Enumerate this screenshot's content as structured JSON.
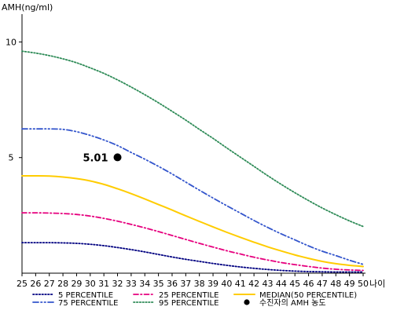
{
  "chart_data": {
    "type": "line",
    "ylabel": "AMH(ng/ml)",
    "xlabel": "나이",
    "x": [
      25,
      26,
      27,
      28,
      29,
      30,
      31,
      32,
      33,
      34,
      35,
      36,
      37,
      38,
      39,
      40,
      41,
      42,
      43,
      44,
      45,
      46,
      47,
      48,
      49,
      50
    ],
    "xlim": [
      25,
      50
    ],
    "ylim": [
      0,
      11
    ],
    "yticks": [
      5,
      10
    ],
    "grid": false,
    "legend_position": "bottom",
    "series": [
      {
        "name": "5 PERCENTILE",
        "color": "#000080",
        "dash": "dotted",
        "values": [
          1.32,
          1.32,
          1.32,
          1.31,
          1.29,
          1.25,
          1.19,
          1.11,
          1.02,
          0.92,
          0.81,
          0.7,
          0.6,
          0.51,
          0.42,
          0.34,
          0.27,
          0.21,
          0.16,
          0.12,
          0.09,
          0.07,
          0.06,
          0.05,
          0.05,
          0.05
        ]
      },
      {
        "name": "25 PERCENTILE",
        "color": "#e6007e",
        "dash": "dash-dot",
        "values": [
          2.61,
          2.61,
          2.6,
          2.58,
          2.54,
          2.47,
          2.37,
          2.25,
          2.11,
          1.96,
          1.8,
          1.63,
          1.46,
          1.29,
          1.13,
          0.97,
          0.83,
          0.69,
          0.57,
          0.46,
          0.37,
          0.29,
          0.22,
          0.17,
          0.14,
          0.12
        ]
      },
      {
        "name": "MEDIAN(50 PERCENTILE)",
        "color": "#ffcc00",
        "dash": "solid",
        "values": [
          4.21,
          4.21,
          4.2,
          4.16,
          4.09,
          3.99,
          3.84,
          3.65,
          3.44,
          3.21,
          2.97,
          2.73,
          2.48,
          2.24,
          2.0,
          1.77,
          1.55,
          1.34,
          1.14,
          0.96,
          0.79,
          0.64,
          0.51,
          0.41,
          0.34,
          0.29
        ]
      },
      {
        "name": "75 PERCENTILE",
        "color": "#3355cc",
        "dash": "dash-dot-dot",
        "values": [
          6.24,
          6.24,
          6.24,
          6.22,
          6.12,
          5.96,
          5.76,
          5.52,
          5.22,
          4.93,
          4.62,
          4.29,
          3.94,
          3.59,
          3.25,
          2.92,
          2.6,
          2.28,
          1.98,
          1.7,
          1.44,
          1.18,
          0.95,
          0.76,
          0.56,
          0.38
        ]
      },
      {
        "name": "95 PERCENTILE",
        "color": "#2e8b57",
        "dash": "dotted",
        "values": [
          9.6,
          9.52,
          9.41,
          9.27,
          9.1,
          8.88,
          8.64,
          8.36,
          8.05,
          7.72,
          7.37,
          7.0,
          6.62,
          6.22,
          5.83,
          5.42,
          5.02,
          4.62,
          4.22,
          3.84,
          3.48,
          3.14,
          2.82,
          2.53,
          2.26,
          2.02
        ]
      }
    ],
    "marker": {
      "name": "수진자의 AMH 농도",
      "x": 32,
      "y": 5.01,
      "label": "5.01",
      "color": "#000000"
    }
  }
}
